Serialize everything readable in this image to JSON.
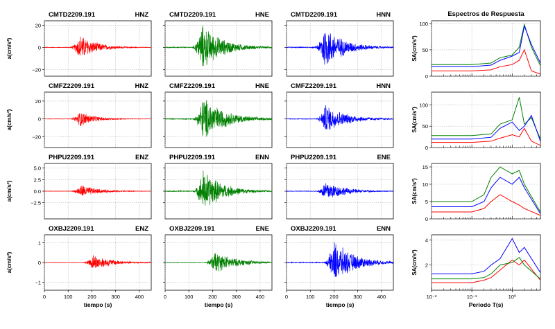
{
  "figure": {
    "ylabel_wave": "a(cm/s²)",
    "ylabel_spec": "SA(cm/s²)",
    "xlabel_time": "tiempo (s)",
    "xlabel_period": "Periodo T(s)",
    "spectra_title": "Espectros de Respuesta",
    "colors": {
      "Z": "#ff0000",
      "E": "#008000",
      "N": "#0000ff"
    }
  },
  "chart_data": [
    {
      "type": "line",
      "station": "CMTD2209.191",
      "xlim": [
        0,
        450
      ],
      "xticks": [
        0,
        100,
        200,
        300,
        400
      ],
      "ylim": [
        -26,
        24
      ],
      "yticks": [
        -20,
        0,
        20
      ],
      "yticklabels": [
        "−20",
        "0",
        "20"
      ],
      "grid": true,
      "panels": [
        {
          "component": "HNZ",
          "color": "#ff0000",
          "peak": 13,
          "onset": 130,
          "decay": 70
        },
        {
          "component": "HNE",
          "color": "#008000",
          "peak": 23,
          "onset": 135,
          "decay": 85
        },
        {
          "component": "HNN",
          "color": "#0000ff",
          "peak": 22,
          "onset": 140,
          "decay": 80
        }
      ],
      "spectra": {
        "xlim_log10": [
          -2,
          0.7
        ],
        "ylim": [
          0,
          105
        ],
        "yticks": [
          0,
          50,
          100
        ],
        "yticklabels": [
          "0",
          "50",
          "100"
        ],
        "series": [
          {
            "component": "Z",
            "color": "#ff0000",
            "period": [
              0.01,
              0.1,
              0.3,
              0.5,
              1.0,
              1.5,
              2.0,
              3.0,
              5.0
            ],
            "sa": [
              10,
              10,
              12,
              18,
              22,
              30,
              50,
              10,
              4
            ]
          },
          {
            "component": "E",
            "color": "#008000",
            "period": [
              0.01,
              0.1,
              0.3,
              0.5,
              1.0,
              1.5,
              2.0,
              3.0,
              5.0
            ],
            "sa": [
              22,
              22,
              25,
              35,
              40,
              55,
              98,
              55,
              20
            ]
          },
          {
            "component": "N",
            "color": "#0000ff",
            "period": [
              0.01,
              0.1,
              0.3,
              0.5,
              1.0,
              1.5,
              2.0,
              3.0,
              5.0
            ],
            "sa": [
              18,
              18,
              21,
              30,
              38,
              45,
              95,
              60,
              25
            ]
          }
        ]
      }
    },
    {
      "type": "line",
      "station": "CMFZ2209.191",
      "xlim": [
        0,
        450
      ],
      "xticks": [
        0,
        100,
        200,
        300,
        400
      ],
      "ylim": [
        -32,
        30
      ],
      "yticks": [
        -20,
        0,
        20
      ],
      "yticklabels": [
        "−20",
        "0",
        "20"
      ],
      "grid": true,
      "panels": [
        {
          "component": "HNZ",
          "color": "#ff0000",
          "peak": 10,
          "onset": 130,
          "decay": 60
        },
        {
          "component": "HNE",
          "color": "#008000",
          "peak": 28,
          "onset": 140,
          "decay": 90
        },
        {
          "component": "HNN",
          "color": "#0000ff",
          "peak": 18,
          "onset": 145,
          "decay": 85
        }
      ],
      "spectra": {
        "xlim_log10": [
          -2,
          0.7
        ],
        "ylim": [
          0,
          130
        ],
        "yticks": [
          0,
          50,
          100
        ],
        "yticklabels": [
          "0",
          "50",
          "100"
        ],
        "series": [
          {
            "component": "Z",
            "color": "#ff0000",
            "period": [
              0.01,
              0.1,
              0.3,
              0.5,
              1.0,
              1.5,
              2.0,
              3.0,
              5.0
            ],
            "sa": [
              12,
              12,
              15,
              22,
              30,
              25,
              45,
              15,
              5
            ]
          },
          {
            "component": "E",
            "color": "#008000",
            "period": [
              0.01,
              0.1,
              0.3,
              0.5,
              1.0,
              1.5,
              2.0,
              3.0,
              5.0
            ],
            "sa": [
              28,
              28,
              32,
              55,
              65,
              118,
              55,
              70,
              20
            ]
          },
          {
            "component": "N",
            "color": "#0000ff",
            "period": [
              0.01,
              0.1,
              0.3,
              0.5,
              1.0,
              1.5,
              2.0,
              3.0,
              5.0
            ],
            "sa": [
              20,
              20,
              24,
              45,
              60,
              40,
              50,
              75,
              15
            ]
          }
        ]
      }
    },
    {
      "type": "line",
      "station": "PHPU2209.191",
      "xlim": [
        0,
        450
      ],
      "xticks": [
        0,
        100,
        200,
        300,
        400
      ],
      "ylim": [
        -6,
        6
      ],
      "yticks": [
        -2.5,
        0,
        2.5,
        5
      ],
      "yticklabels": [
        "−2.5",
        "0.0",
        "2.5",
        "5.0"
      ],
      "grid": true,
      "panels": [
        {
          "component": "ENZ",
          "color": "#ff0000",
          "peak": 1.6,
          "onset": 135,
          "decay": 70
        },
        {
          "component": "ENN",
          "color": "#008000",
          "peak": 5.2,
          "onset": 140,
          "decay": 80
        },
        {
          "component": "ENE",
          "color": "#0000ff",
          "peak": 2.6,
          "onset": 145,
          "decay": 75
        }
      ],
      "spectra": {
        "xlim_log10": [
          -2,
          0.7
        ],
        "ylim": [
          0,
          16
        ],
        "yticks": [
          0,
          5,
          10,
          15
        ],
        "yticklabels": [
          "0",
          "5",
          "10",
          "15"
        ],
        "series": [
          {
            "component": "Z",
            "color": "#ff0000",
            "period": [
              0.01,
              0.1,
              0.2,
              0.3,
              0.5,
              1.0,
              1.5,
              2.0,
              5.0
            ],
            "sa": [
              2,
              2,
              3,
              5,
              7,
              5,
              4,
              3,
              1
            ]
          },
          {
            "component": "E",
            "color": "#008000",
            "period": [
              0.01,
              0.1,
              0.2,
              0.3,
              0.5,
              1.0,
              1.5,
              2.0,
              5.0
            ],
            "sa": [
              5,
              5,
              7,
              12,
              15,
              13,
              14,
              10,
              2
            ]
          },
          {
            "component": "N",
            "color": "#0000ff",
            "period": [
              0.01,
              0.1,
              0.2,
              0.3,
              0.5,
              1.0,
              1.5,
              2.0,
              5.0
            ],
            "sa": [
              3.5,
              3.5,
              5,
              9,
              12,
              10,
              12,
              9,
              1.5
            ]
          }
        ]
      }
    },
    {
      "type": "line",
      "station": "OXBJ2209.191",
      "xlim": [
        0,
        450
      ],
      "xticks": [
        0,
        100,
        200,
        300,
        400
      ],
      "ylim": [
        -1.4,
        1.4
      ],
      "yticks": [
        -1,
        0,
        1
      ],
      "yticklabels": [
        "−1",
        "0",
        "1"
      ],
      "grid": true,
      "panels": [
        {
          "component": "ENZ",
          "color": "#ff0000",
          "peak": 0.45,
          "onset": 185,
          "decay": 80
        },
        {
          "component": "ENE",
          "color": "#008000",
          "peak": 0.6,
          "onset": 190,
          "decay": 90
        },
        {
          "component": "ENN",
          "color": "#0000ff",
          "peak": 1.2,
          "onset": 180,
          "decay": 85
        }
      ],
      "spectra": {
        "xlim_log10": [
          -2,
          0.7
        ],
        "ylim": [
          0,
          4.4
        ],
        "yticks": [
          2,
          4
        ],
        "yticklabels": [
          "2",
          "4"
        ],
        "series": [
          {
            "component": "Z",
            "color": "#ff0000",
            "period": [
              0.01,
              0.1,
              0.2,
              0.3,
              0.5,
              1.0,
              1.5,
              2.0,
              5.0
            ],
            "sa": [
              0.6,
              0.6,
              0.8,
              1.0,
              1.6,
              2.4,
              2.0,
              2.4,
              0.8
            ]
          },
          {
            "component": "E",
            "color": "#008000",
            "period": [
              0.01,
              0.1,
              0.2,
              0.3,
              0.5,
              1.0,
              1.5,
              2.0,
              5.0
            ],
            "sa": [
              0.9,
              0.9,
              1.0,
              1.3,
              2.0,
              2.2,
              2.6,
              2.0,
              0.9
            ]
          },
          {
            "component": "N",
            "color": "#0000ff",
            "period": [
              0.01,
              0.1,
              0.2,
              0.3,
              0.5,
              1.0,
              1.5,
              2.0,
              5.0
            ],
            "sa": [
              1.3,
              1.3,
              1.5,
              2.0,
              2.5,
              4.1,
              3.0,
              3.4,
              1.4
            ]
          }
        ]
      }
    }
  ],
  "time_axis": {
    "ticks": [
      0,
      100,
      200,
      300,
      400
    ]
  },
  "period_axis": {
    "ticks": [
      "10⁻²",
      "10⁻¹",
      "10⁰"
    ]
  }
}
